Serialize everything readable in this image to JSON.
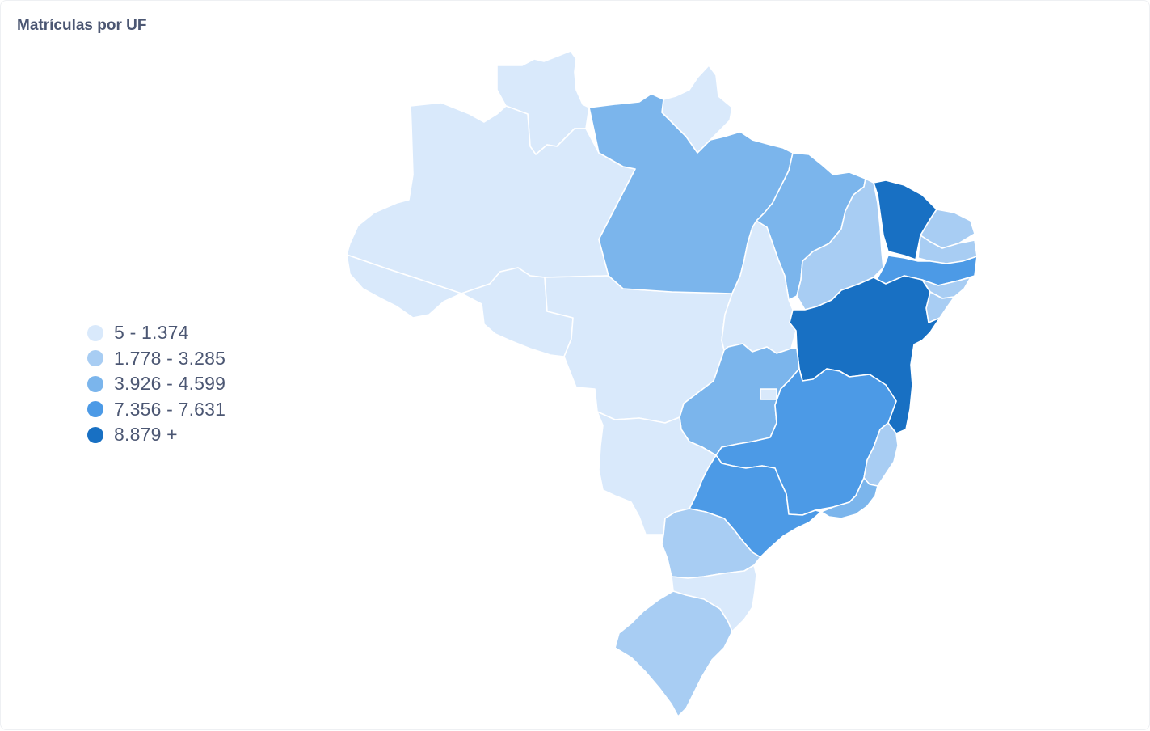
{
  "card": {
    "title": "Matrículas por UF"
  },
  "legend": {
    "items": [
      {
        "label": "5 - 1.374",
        "color": "#d9e9fb"
      },
      {
        "label": "1.778 - 3.285",
        "color": "#a8cdf3"
      },
      {
        "label": "3.926 - 4.599",
        "color": "#7bb5ec"
      },
      {
        "label": "7.356 - 7.631",
        "color": "#4c9ae6"
      },
      {
        "label": "8.879 +",
        "color": "#1870c3"
      }
    ]
  },
  "map": {
    "region": "Brasil",
    "states": [
      {
        "uf": "RR",
        "bin": 0
      },
      {
        "uf": "AP",
        "bin": 0
      },
      {
        "uf": "AM",
        "bin": 0
      },
      {
        "uf": "AC",
        "bin": 0
      },
      {
        "uf": "RO",
        "bin": 0
      },
      {
        "uf": "MT",
        "bin": 0
      },
      {
        "uf": "TO",
        "bin": 0
      },
      {
        "uf": "MS",
        "bin": 0
      },
      {
        "uf": "SC",
        "bin": 0
      },
      {
        "uf": "DF",
        "bin": 0
      },
      {
        "uf": "PI",
        "bin": 1
      },
      {
        "uf": "RN",
        "bin": 1
      },
      {
        "uf": "PB",
        "bin": 1
      },
      {
        "uf": "AL",
        "bin": 1
      },
      {
        "uf": "SE",
        "bin": 1
      },
      {
        "uf": "ES",
        "bin": 1
      },
      {
        "uf": "PR",
        "bin": 1
      },
      {
        "uf": "RS",
        "bin": 1
      },
      {
        "uf": "PA",
        "bin": 2
      },
      {
        "uf": "MA",
        "bin": 2
      },
      {
        "uf": "GO",
        "bin": 2
      },
      {
        "uf": "RJ",
        "bin": 2
      },
      {
        "uf": "PE",
        "bin": 3
      },
      {
        "uf": "MG",
        "bin": 3
      },
      {
        "uf": "SP",
        "bin": 3
      },
      {
        "uf": "CE",
        "bin": 4
      },
      {
        "uf": "BA",
        "bin": 4
      }
    ]
  }
}
